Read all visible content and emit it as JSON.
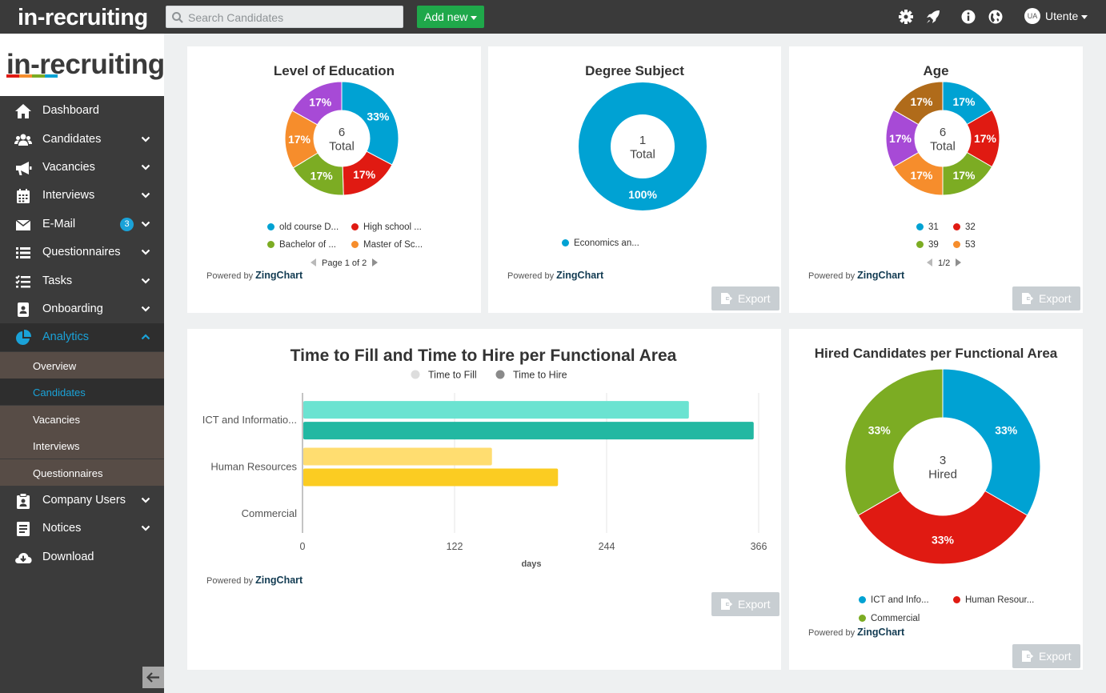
{
  "topbar": {
    "brand": "in-recruiting",
    "search_placeholder": "Search Candidates",
    "add_new_label": "Add new",
    "user_initials": "UA",
    "user_name": "Utente"
  },
  "sidebar": {
    "logo_text": "in-recruiting",
    "items": [
      {
        "label": "Dashboard",
        "icon": "home-icon"
      },
      {
        "label": "Candidates",
        "icon": "users-icon"
      },
      {
        "label": "Vacancies",
        "icon": "megaphone-icon"
      },
      {
        "label": "Interviews",
        "icon": "calendar-icon"
      },
      {
        "label": "E-Mail",
        "icon": "envelope-icon",
        "badge": "3"
      },
      {
        "label": "Questionnaires",
        "icon": "list-icon"
      },
      {
        "label": "Tasks",
        "icon": "tasks-icon"
      },
      {
        "label": "Onboarding",
        "icon": "id-badge-icon"
      },
      {
        "label": "Analytics",
        "icon": "pie-chart-icon"
      },
      {
        "label": "Company Users",
        "icon": "company-users-icon"
      },
      {
        "label": "Notices",
        "icon": "notice-icon"
      },
      {
        "label": "Download",
        "icon": "cloud-download-icon"
      }
    ],
    "analytics_sub": [
      "Overview",
      "Candidates",
      "Vacancies",
      "Interviews",
      "Questionnaires"
    ]
  },
  "common": {
    "powered_by": "Powered by",
    "zingchart": "ZingChart",
    "export_label": "Export"
  },
  "colors": {
    "blue": "#00a2d3",
    "red": "#e01a12",
    "green": "#7cac23",
    "orange": "#f68d2c",
    "purple": "#a74ad6",
    "brown": "#b06b1a",
    "teal_light": "#6be3d1",
    "teal": "#22b8a2",
    "yellow_light": "#ffdd70",
    "yellow": "#fbcc22",
    "accent": "#1aa2d8",
    "addnew_green": "#1fa84a"
  },
  "chart_data": [
    {
      "type": "pie",
      "title": "Level of Education",
      "center": [
        "6",
        "Total"
      ],
      "slices": [
        {
          "label": "old course D...",
          "value": 33,
          "text": "33%",
          "color": "#00a2d3"
        },
        {
          "label": "High school ...",
          "value": 17,
          "text": "17%",
          "color": "#e01a12"
        },
        {
          "label": "Bachelor of ...",
          "value": 17,
          "text": "17%",
          "color": "#7cac23"
        },
        {
          "label": "Master of Sc...",
          "value": 17,
          "text": "17%",
          "color": "#f68d2c"
        },
        {
          "label": "",
          "value": 17,
          "text": "17%",
          "color": "#a74ad6"
        }
      ],
      "legend_pager": "Page 1 of 2"
    },
    {
      "type": "pie",
      "title": "Degree Subject",
      "center": [
        "1",
        "Total"
      ],
      "slices": [
        {
          "label": "Economics an...",
          "value": 100,
          "text": "100%",
          "color": "#00a2d3"
        }
      ]
    },
    {
      "type": "pie",
      "title": "Age",
      "center": [
        "6",
        "Total"
      ],
      "slices": [
        {
          "label": "31",
          "value": 17,
          "text": "17%",
          "color": "#00a2d3"
        },
        {
          "label": "32",
          "value": 17,
          "text": "17%",
          "color": "#e01a12"
        },
        {
          "label": "39",
          "value": 17,
          "text": "17%",
          "color": "#7cac23"
        },
        {
          "label": "53",
          "value": 17,
          "text": "17%",
          "color": "#f68d2c"
        },
        {
          "label": "",
          "value": 17,
          "text": "17%",
          "color": "#a74ad6"
        },
        {
          "label": "",
          "value": 17,
          "text": "17%",
          "color": "#b06b1a"
        }
      ],
      "legend_pager": "1/2"
    },
    {
      "type": "bar",
      "orientation": "horizontal",
      "title": "Time to Fill and Time to Hire per Functional Area",
      "categories": [
        "ICT and Informatio...",
        "Human Resources",
        "Commercial"
      ],
      "series": [
        {
          "name": "Time to Fill",
          "values": [
            310,
            152,
            0
          ],
          "colors": [
            "#6be3d1",
            "#ffdd70",
            "#cccccc"
          ],
          "legend_color": "#dddddd"
        },
        {
          "name": "Time to Hire",
          "values": [
            362,
            205,
            0
          ],
          "colors": [
            "#22b8a2",
            "#fbcc22",
            "#999999"
          ],
          "legend_color": "#8a8a8a"
        }
      ],
      "xlabel": "days",
      "xticks": [
        "0",
        "122",
        "244",
        "366"
      ],
      "xlim": [
        0,
        366
      ],
      "grid": true,
      "legend": "top"
    },
    {
      "type": "pie",
      "title": "Hired Candidates per Functional Area",
      "center": [
        "3",
        "Hired"
      ],
      "slices": [
        {
          "label": "ICT and Info...",
          "value": 33,
          "text": "33%",
          "color": "#00a2d3"
        },
        {
          "label": "Human Resour...",
          "value": 33,
          "text": "33%",
          "color": "#e01a12"
        },
        {
          "label": "Commercial",
          "value": 33,
          "text": "33%",
          "color": "#7cac23"
        }
      ]
    }
  ]
}
